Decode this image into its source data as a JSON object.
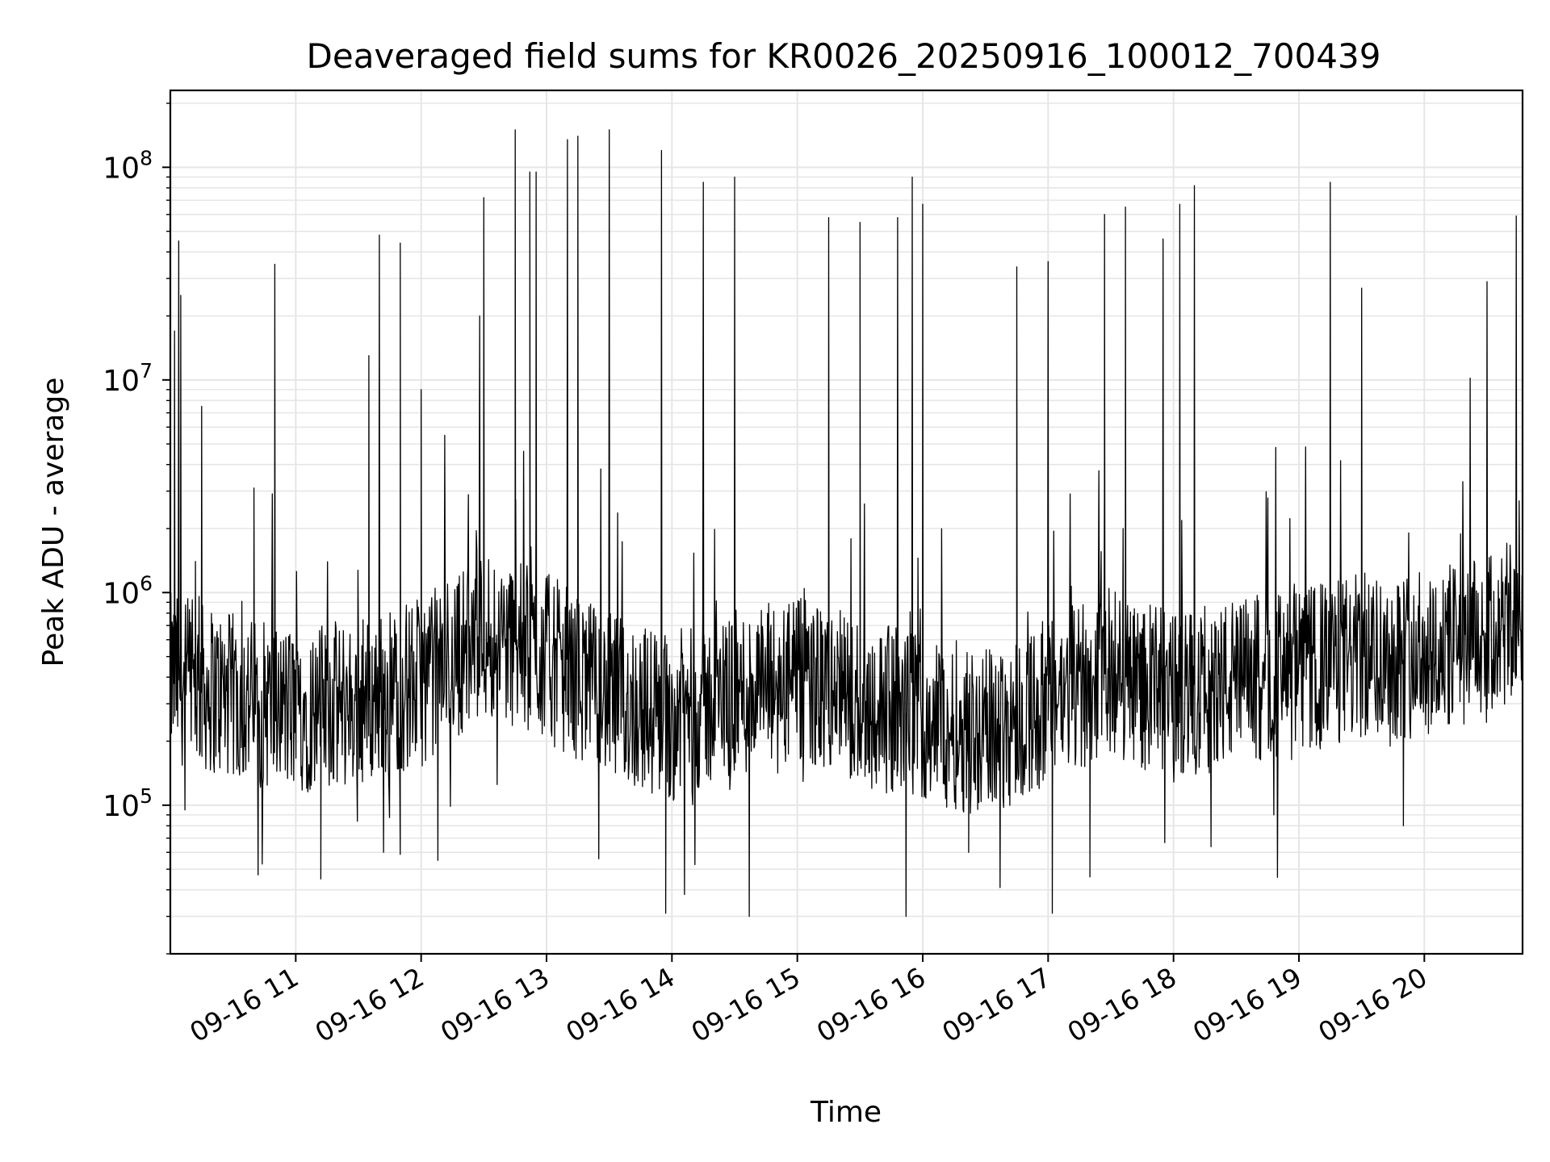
{
  "chart_data": {
    "type": "line",
    "title": "Deaveraged field sums for KR0026_20250916_100012_700439",
    "xlabel": "Time",
    "ylabel": "Peak ADU - average",
    "y_scale": "log",
    "grid": true,
    "legend": "none",
    "line_color": "#000000",
    "grid_color": "#e6e6e6",
    "xlim": [
      "2025-09-16 10:00",
      "2025-09-16 20:47"
    ],
    "ylim": [
      20000,
      230000000
    ],
    "x_tick_labels": [
      "09-16 11",
      "09-16 12",
      "09-16 13",
      "09-16 14",
      "09-16 15",
      "09-16 16",
      "09-16 17",
      "09-16 18",
      "09-16 19",
      "09-16 20"
    ],
    "x_tick_values": [
      "2025-09-16 11:00",
      "2025-09-16 12:00",
      "2025-09-16 13:00",
      "2025-09-16 14:00",
      "2025-09-16 15:00",
      "2025-09-16 16:00",
      "2025-09-16 17:00",
      "2025-09-16 18:00",
      "2025-09-16 19:00",
      "2025-09-16 20:00"
    ],
    "y_tick_values": [
      100000,
      1000000,
      10000000,
      100000000
    ],
    "y_tick_labels": [
      {
        "base": "10",
        "exp": "5"
      },
      {
        "base": "10",
        "exp": "6"
      },
      {
        "base": "10",
        "exp": "7"
      },
      {
        "base": "10",
        "exp": "8"
      }
    ],
    "series": [
      {
        "x_start": "2025-09-16 10:00",
        "x_end": "2025-09-16 20:47",
        "points": [
          [
            "2025-09-16 10:02",
            17000000
          ],
          [
            "2025-09-16 10:04",
            45000000
          ],
          [
            "2025-09-16 10:05",
            25000000
          ],
          [
            "2025-09-16 10:07",
            95000
          ],
          [
            "2025-09-16 10:12",
            1400000
          ],
          [
            "2025-09-16 10:15",
            7500000
          ],
          [
            "2025-09-16 10:40",
            3100000
          ],
          [
            "2025-09-16 10:42",
            47000
          ],
          [
            "2025-09-16 10:50",
            35000000
          ],
          [
            "2025-09-16 11:12",
            45000
          ],
          [
            "2025-09-16 11:35",
            13000000
          ],
          [
            "2025-09-16 11:40",
            48000000
          ],
          [
            "2025-09-16 11:42",
            60000
          ],
          [
            "2025-09-16 11:50",
            44000000
          ],
          [
            "2025-09-16 12:00",
            9000000
          ],
          [
            "2025-09-16 12:08",
            55000
          ],
          [
            "2025-09-16 12:28",
            20000000
          ],
          [
            "2025-09-16 12:30",
            72000000
          ],
          [
            "2025-09-16 12:45",
            150000000
          ],
          [
            "2025-09-16 12:52",
            95000000
          ],
          [
            "2025-09-16 12:55",
            95000000
          ],
          [
            "2025-09-16 13:10",
            135000000
          ],
          [
            "2025-09-16 13:15",
            140000000
          ],
          [
            "2025-09-16 13:25",
            56000
          ],
          [
            "2025-09-16 13:30",
            150000000
          ],
          [
            "2025-09-16 13:55",
            120000000
          ],
          [
            "2025-09-16 13:57",
            31000
          ],
          [
            "2025-09-16 14:06",
            38000
          ],
          [
            "2025-09-16 14:15",
            85000000
          ],
          [
            "2025-09-16 14:30",
            90000000
          ],
          [
            "2025-09-16 14:37",
            30000
          ],
          [
            "2025-09-16 15:15",
            58000000
          ],
          [
            "2025-09-16 15:30",
            55000000
          ],
          [
            "2025-09-16 15:48",
            58000000
          ],
          [
            "2025-09-16 15:52",
            30000
          ],
          [
            "2025-09-16 15:55",
            90000000
          ],
          [
            "2025-09-16 16:00",
            67000000
          ],
          [
            "2025-09-16 16:22",
            60000
          ],
          [
            "2025-09-16 16:37",
            41000
          ],
          [
            "2025-09-16 16:45",
            34000000
          ],
          [
            "2025-09-16 17:00",
            36000000
          ],
          [
            "2025-09-16 17:02",
            31000
          ],
          [
            "2025-09-16 17:20",
            46000
          ],
          [
            "2025-09-16 17:27",
            60000000
          ],
          [
            "2025-09-16 17:37",
            65000000
          ],
          [
            "2025-09-16 17:55",
            46000000
          ],
          [
            "2025-09-16 18:03",
            67000000
          ],
          [
            "2025-09-16 18:10",
            82000000
          ],
          [
            "2025-09-16 18:48",
            90000
          ],
          [
            "2025-09-16 19:15",
            85000000
          ],
          [
            "2025-09-16 19:30",
            27000000
          ],
          [
            "2025-09-16 19:50",
            80000
          ],
          [
            "2025-09-16 20:30",
            29000000
          ],
          [
            "2025-09-16 20:44",
            59000000
          ]
        ],
        "baseline": [
          [
            "2025-09-16 10:00",
            400000
          ],
          [
            "2025-09-16 10:30",
            320000
          ],
          [
            "2025-09-16 11:00",
            280000
          ],
          [
            "2025-09-16 11:30",
            300000
          ],
          [
            "2025-09-16 12:00",
            380000
          ],
          [
            "2025-09-16 12:30",
            650000
          ],
          [
            "2025-09-16 13:00",
            500000
          ],
          [
            "2025-09-16 13:30",
            320000
          ],
          [
            "2025-09-16 14:00",
            260000
          ],
          [
            "2025-09-16 14:30",
            330000
          ],
          [
            "2025-09-16 15:00",
            380000
          ],
          [
            "2025-09-16 15:30",
            300000
          ],
          [
            "2025-09-16 16:00",
            260000
          ],
          [
            "2025-09-16 16:30",
            220000
          ],
          [
            "2025-09-16 17:00",
            300000
          ],
          [
            "2025-09-16 17:30",
            430000
          ],
          [
            "2025-09-16 18:00",
            320000
          ],
          [
            "2025-09-16 18:30",
            380000
          ],
          [
            "2025-09-16 19:00",
            420000
          ],
          [
            "2025-09-16 19:30",
            500000
          ],
          [
            "2025-09-16 20:00",
            520000
          ],
          [
            "2025-09-16 20:30",
            600000
          ],
          [
            "2025-09-16 20:47",
            750000
          ]
        ]
      }
    ]
  }
}
